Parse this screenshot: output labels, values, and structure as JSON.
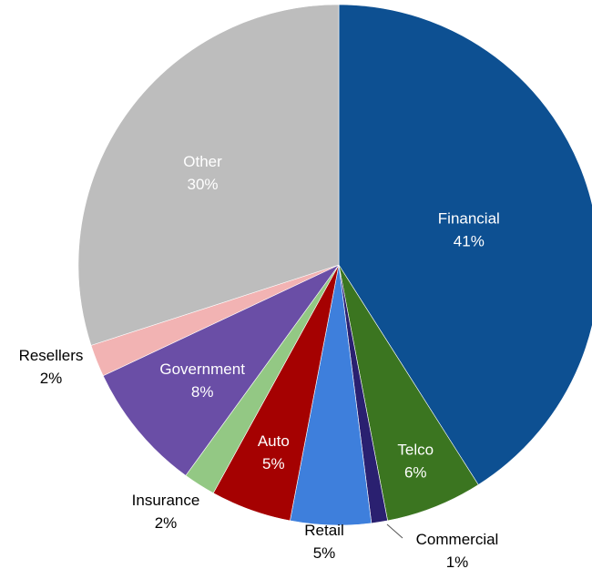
{
  "chart_data": {
    "type": "pie",
    "title": "",
    "slices": [
      {
        "label": "Financial",
        "pct_label": "41%",
        "value": 41,
        "color": "#0d5092",
        "text_color": "#ffffff"
      },
      {
        "label": "Telco",
        "pct_label": "6%",
        "value": 6,
        "color": "#3b7520",
        "text_color": "#ffffff"
      },
      {
        "label": "Commercial",
        "pct_label": "1%",
        "value": 1,
        "color": "#2a2070",
        "text_color": "#000000"
      },
      {
        "label": "Retail",
        "pct_label": "5%",
        "value": 5,
        "color": "#3e7fdc",
        "text_color": "#000000"
      },
      {
        "label": "Auto",
        "pct_label": "5%",
        "value": 5,
        "color": "#a50101",
        "text_color": "#ffffff"
      },
      {
        "label": "Insurance",
        "pct_label": "2%",
        "value": 2,
        "color": "#93c884",
        "text_color": "#000000"
      },
      {
        "label": "Government",
        "pct_label": "8%",
        "value": 8,
        "color": "#6a4ea6",
        "text_color": "#ffffff"
      },
      {
        "label": "Resellers",
        "pct_label": "2%",
        "value": 2,
        "color": "#f2b3b3",
        "text_color": "#000000"
      },
      {
        "label": "Other",
        "pct_label": "30%",
        "value": 30,
        "color": "#bdbdbd",
        "text_color": "#ffffff"
      }
    ]
  }
}
